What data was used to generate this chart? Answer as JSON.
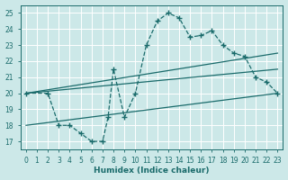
{
  "xlabel": "Humidex (Indice chaleur)",
  "xlim": [
    -0.5,
    23.5
  ],
  "ylim": [
    16.5,
    25.5
  ],
  "xticks": [
    0,
    1,
    2,
    3,
    4,
    5,
    6,
    7,
    8,
    9,
    10,
    11,
    12,
    13,
    14,
    15,
    16,
    17,
    18,
    19,
    20,
    21,
    22,
    23
  ],
  "yticks": [
    17,
    18,
    19,
    20,
    21,
    22,
    23,
    24,
    25
  ],
  "bg_color": "#cce8e8",
  "line_color": "#1a6b6b",
  "grid_color": "#ffffff",
  "curve_x": [
    0,
    2,
    3,
    4,
    5,
    6,
    7,
    7.5,
    8,
    9,
    10,
    11,
    12,
    13,
    14,
    15,
    16,
    17,
    18,
    19,
    20,
    21,
    22,
    23
  ],
  "curve_y": [
    20,
    20,
    18,
    18,
    17.5,
    17.0,
    17.0,
    18.5,
    21.5,
    18.5,
    20.0,
    23.0,
    24.5,
    25.0,
    24.7,
    23.5,
    23.6,
    23.9,
    23.0,
    22.5,
    22.3,
    21.0,
    20.7,
    20.0
  ],
  "line1_x": [
    0,
    23
  ],
  "line1_y": [
    20.0,
    22.5
  ],
  "line2_x": [
    0,
    23
  ],
  "line2_y": [
    20.0,
    21.5
  ],
  "line3_x": [
    0,
    23
  ],
  "line3_y": [
    18.0,
    20.0
  ]
}
